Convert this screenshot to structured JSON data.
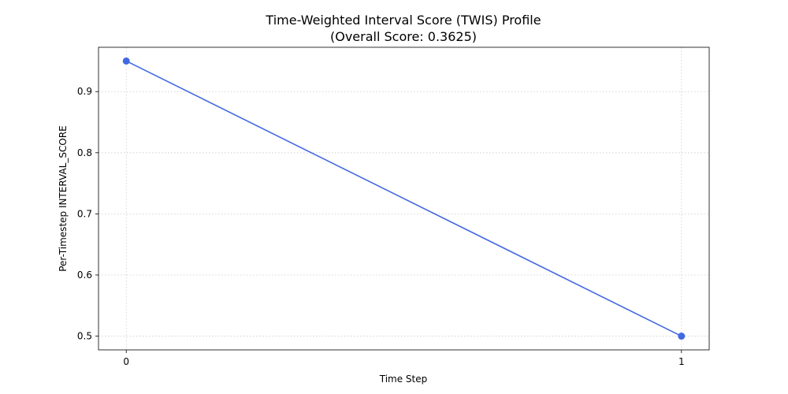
{
  "chart_data": {
    "type": "line",
    "title": "Time-Weighted Interval Score (TWIS) Profile",
    "subtitle": "(Overall Score: 0.3625)",
    "xlabel": "Time Step",
    "ylabel": "Per-Timestep INTERVAL_SCORE",
    "x": [
      0,
      1
    ],
    "series": [
      {
        "values": [
          0.95,
          0.5
        ],
        "color": "#4169e1",
        "marker": "circle"
      }
    ],
    "x_ticks": [
      0,
      1
    ],
    "x_tick_labels": [
      "0",
      "1"
    ],
    "y_ticks": [
      0.5,
      0.6,
      0.7,
      0.8,
      0.9
    ],
    "y_tick_labels": [
      "0.5",
      "0.6",
      "0.7",
      "0.8",
      "0.9"
    ],
    "xlim": [
      -0.05,
      1.05
    ],
    "ylim": [
      0.4775,
      0.9725
    ],
    "grid": true
  }
}
